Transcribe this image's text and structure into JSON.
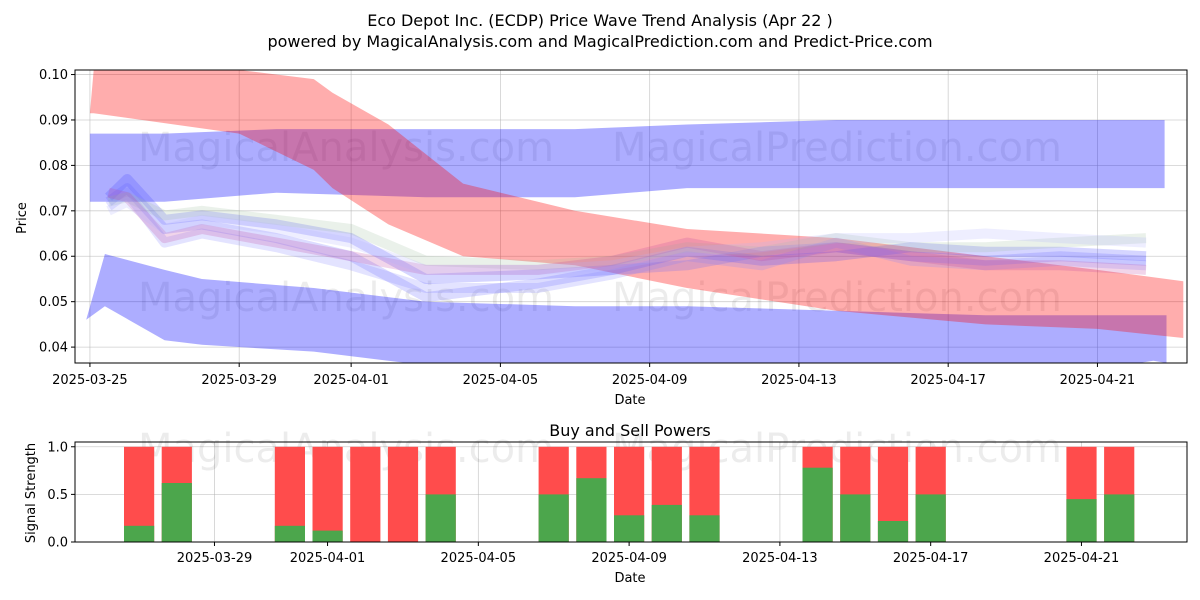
{
  "title_line1": "Eco Depot Inc. (ECDP) Price Wave Trend Analysis (Apr 22 )",
  "title_line2": "powered by MagicalAnalysis.com and MagicalPrediction.com and Predict-Price.com",
  "watermarks": [
    "MagicalAnalysis.com",
    "MagicalPrediction.com"
  ],
  "chart_data": [
    {
      "type": "area",
      "title": "Eco Depot Inc. (ECDP) Price Wave Trend Analysis (Apr 22 )",
      "xlabel": "Date",
      "ylabel": "Price",
      "x_start": "2025-03-25",
      "x_end": "2025-04-23",
      "xlim_days": [
        -0.4,
        29.4
      ],
      "ylim": [
        0.0365,
        0.101
      ],
      "yticks": [
        0.04,
        0.05,
        0.06,
        0.07,
        0.08,
        0.09,
        0.1
      ],
      "ytick_labels": [
        "0.04",
        "0.05",
        "0.06",
        "0.07",
        "0.08",
        "0.09",
        "0.10"
      ],
      "xtick_days": [
        0,
        4,
        7,
        11,
        15,
        19,
        23,
        27
      ],
      "xtick_labels": [
        "2025-03-25",
        "2025-03-29",
        "2025-04-01",
        "2025-04-05",
        "2025-04-09",
        "2025-04-13",
        "2025-04-17",
        "2025-04-21"
      ],
      "grid": true,
      "bands": [
        {
          "name": "upper blue band",
          "color": "#0000ff",
          "opacity": 0.32,
          "x": [
            0,
            2,
            5,
            9,
            13,
            16,
            20,
            24,
            28.8
          ],
          "lower": [
            0.072,
            0.072,
            0.074,
            0.073,
            0.073,
            0.075,
            0.075,
            0.075,
            0.075
          ],
          "upper": [
            0.087,
            0.087,
            0.088,
            0.088,
            0.088,
            0.089,
            0.09,
            0.09,
            0.09
          ]
        },
        {
          "name": "lower blue band",
          "color": "#0000ff",
          "opacity": 0.32,
          "x": [
            -0.1,
            0.4,
            2,
            3,
            6,
            9,
            13,
            16,
            20,
            24,
            27,
            28.5,
            28.85
          ],
          "lower": [
            0.046,
            0.049,
            0.0415,
            0.0405,
            0.039,
            0.036,
            0.035,
            0.034,
            0.034,
            0.034,
            0.035,
            0.037,
            0.0365
          ],
          "upper": [
            0.046,
            0.0605,
            0.057,
            0.055,
            0.053,
            0.05,
            0.049,
            0.049,
            0.048,
            0.047,
            0.047,
            0.047,
            0.047
          ]
        },
        {
          "name": "red band",
          "color": "#ff0000",
          "opacity": 0.32,
          "x": [
            0,
            0.1,
            4,
            6,
            6.5,
            8,
            10,
            13,
            16,
            20,
            24,
            27,
            29.3
          ],
          "lower": [
            0.0915,
            0.0915,
            0.087,
            0.079,
            0.075,
            0.067,
            0.06,
            0.058,
            0.053,
            0.048,
            0.045,
            0.044,
            0.042
          ],
          "upper": [
            0.0915,
            0.101,
            0.101,
            0.099,
            0.096,
            0.089,
            0.076,
            0.07,
            0.066,
            0.064,
            0.06,
            0.057,
            0.0545
          ]
        }
      ],
      "wave_traces": [
        {
          "color": "#4040ff",
          "x": [
            0.5,
            1,
            2,
            3,
            5,
            7,
            9,
            12,
            14,
            16,
            18,
            20,
            22,
            24,
            26,
            28.3
          ],
          "y": [
            0.073,
            0.077,
            0.068,
            0.069,
            0.067,
            0.064,
            0.055,
            0.056,
            0.057,
            0.061,
            0.059,
            0.06,
            0.062,
            0.061,
            0.061,
            0.06
          ]
        },
        {
          "color": "#6060ff",
          "x": [
            0.5,
            1,
            2,
            3,
            5,
            7,
            9,
            12,
            14,
            16,
            18,
            20,
            22,
            24,
            26,
            28.3
          ],
          "y": [
            0.072,
            0.075,
            0.066,
            0.067,
            0.064,
            0.06,
            0.051,
            0.054,
            0.057,
            0.058,
            0.061,
            0.062,
            0.06,
            0.059,
            0.06,
            0.059
          ]
        },
        {
          "color": "#8080ff",
          "x": [
            0.5,
            1,
            2,
            3,
            5,
            7,
            9,
            12,
            14,
            16,
            18,
            20,
            22,
            24,
            26,
            28.3
          ],
          "y": [
            0.071,
            0.074,
            0.063,
            0.065,
            0.062,
            0.058,
            0.053,
            0.053,
            0.056,
            0.06,
            0.058,
            0.063,
            0.059,
            0.058,
            0.059,
            0.058
          ]
        },
        {
          "color": "#a0c0a0",
          "x": [
            0.5,
            1,
            2,
            3,
            5,
            7,
            9,
            12,
            14,
            16,
            18,
            20,
            22,
            24,
            26,
            28.3
          ],
          "y": [
            0.072,
            0.073,
            0.069,
            0.07,
            0.068,
            0.066,
            0.059,
            0.058,
            0.059,
            0.062,
            0.061,
            0.064,
            0.062,
            0.062,
            0.063,
            0.064
          ]
        },
        {
          "color": "#c040a0",
          "x": [
            0.5,
            1,
            2,
            3,
            5,
            7,
            9,
            12,
            14,
            16,
            18,
            20,
            22,
            24,
            26,
            28.3
          ],
          "y": [
            0.074,
            0.073,
            0.064,
            0.066,
            0.063,
            0.06,
            0.057,
            0.057,
            0.059,
            0.063,
            0.06,
            0.062,
            0.06,
            0.058,
            0.058,
            0.057
          ]
        },
        {
          "color": "#b0b0ff",
          "x": [
            0.5,
            1,
            2,
            3,
            5,
            7,
            9,
            12,
            14,
            16,
            18,
            20,
            22,
            24,
            26,
            28.3
          ],
          "y": [
            0.07,
            0.072,
            0.066,
            0.068,
            0.066,
            0.063,
            0.057,
            0.057,
            0.058,
            0.061,
            0.062,
            0.064,
            0.064,
            0.065,
            0.064,
            0.063
          ]
        }
      ]
    },
    {
      "type": "bar",
      "title": "Buy and Sell Powers",
      "xlabel": "Date",
      "ylabel": "Signal Strength",
      "ylim": [
        0,
        1.05
      ],
      "yticks": [
        0.0,
        0.5,
        1.0
      ],
      "ytick_labels": [
        "0.0",
        "0.5",
        "1.0"
      ],
      "xtick_days": [
        4,
        7,
        11,
        15,
        19,
        23,
        27
      ],
      "xtick_labels": [
        "2025-03-29",
        "2025-04-01",
        "2025-04-05",
        "2025-04-09",
        "2025-04-13",
        "2025-04-17",
        "2025-04-21"
      ],
      "xlim_days": [
        0.3,
        29.8
      ],
      "series": [
        {
          "name": "Buy",
          "color": "#4ca64c"
        },
        {
          "name": "Sell",
          "color": "#ff4c4c"
        }
      ],
      "days": [
        2,
        3,
        6,
        7,
        8,
        9,
        10,
        13,
        14,
        15,
        16,
        17,
        20,
        21,
        22,
        23,
        27,
        28
      ],
      "buy": [
        0.17,
        0.62,
        0.17,
        0.12,
        0.0,
        0.0,
        0.5,
        0.5,
        0.67,
        0.28,
        0.39,
        0.28,
        0.78,
        0.5,
        0.22,
        0.5,
        0.45,
        0.5
      ],
      "total": [
        1,
        1,
        1,
        1,
        1,
        1,
        1,
        1,
        1,
        1,
        1,
        1,
        1,
        1,
        1,
        1,
        1,
        1
      ]
    }
  ]
}
